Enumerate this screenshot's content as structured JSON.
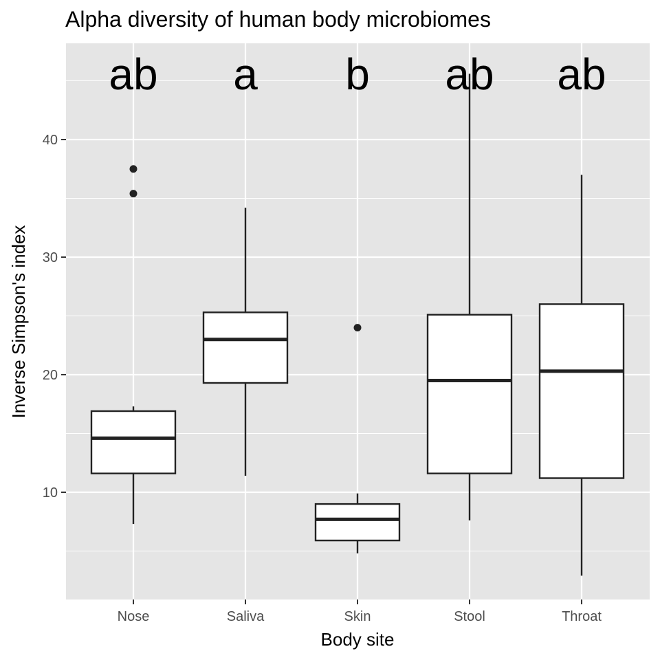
{
  "chart_data": {
    "type": "box",
    "title": "Alpha diversity of human body microbiomes",
    "xlabel": "Body site",
    "ylabel": "Inverse Simpson's index",
    "ylim": [
      0.5,
      48.5
    ],
    "yticks": [
      10,
      20,
      30,
      40
    ],
    "grid": true,
    "panel_background": "#e5e5e5",
    "box_fill": "#ffffff",
    "line_color": "#222222",
    "categories": [
      "Nose",
      "Saliva",
      "Skin",
      "Stool",
      "Throat"
    ],
    "boxes": [
      {
        "category": "Nose",
        "whisker_low": 7.3,
        "q1": 11.6,
        "median": 14.6,
        "q3": 16.9,
        "whisker_high": 17.3,
        "outliers": [
          35.4,
          37.5
        ],
        "letter": "ab"
      },
      {
        "category": "Saliva",
        "whisker_low": 11.4,
        "q1": 19.3,
        "median": 23.0,
        "q3": 25.3,
        "whisker_high": 34.2,
        "outliers": [],
        "letter": "a"
      },
      {
        "category": "Skin",
        "whisker_low": 4.8,
        "q1": 5.9,
        "median": 7.7,
        "q3": 9.0,
        "whisker_high": 9.9,
        "outliers": [
          24.0
        ],
        "letter": "b"
      },
      {
        "category": "Stool",
        "whisker_low": 7.6,
        "q1": 11.6,
        "median": 19.5,
        "q3": 25.1,
        "whisker_high": 45.6,
        "outliers": [],
        "letter": "ab"
      },
      {
        "category": "Throat",
        "whisker_low": 2.9,
        "q1": 11.2,
        "median": 20.3,
        "q3": 26.0,
        "whisker_high": 37.0,
        "outliers": [],
        "letter": "ab"
      }
    ]
  }
}
